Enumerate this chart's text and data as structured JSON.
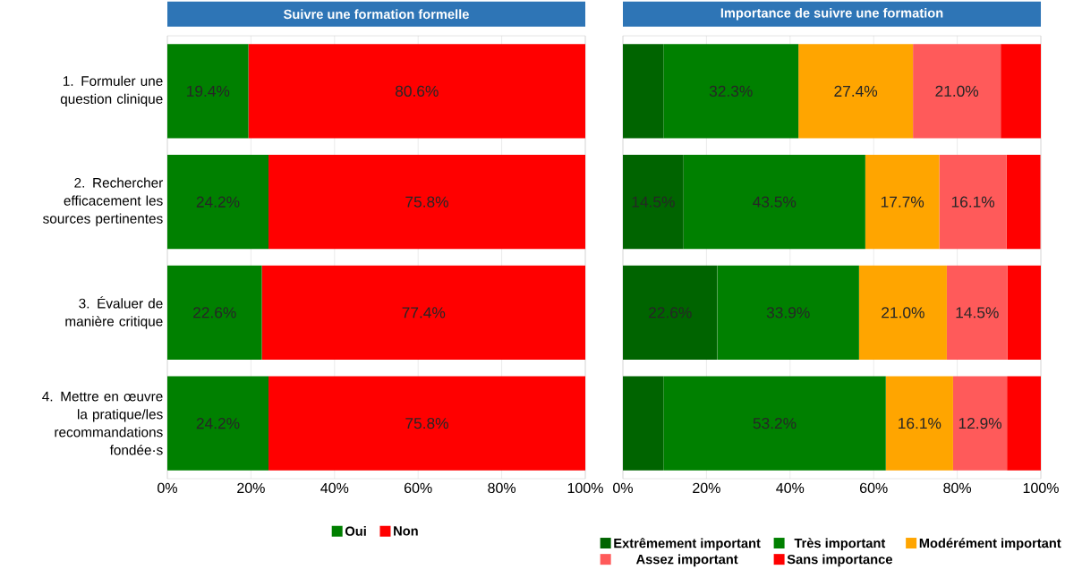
{
  "chart_data": [
    {
      "type": "bar",
      "orientation": "horizontal",
      "stacked": true,
      "title": "Suivre une formation formelle",
      "categories": [
        "1. Formuler une question clinique",
        "2. Rechercher efficacement les sources pertinentes",
        "3. Évaluer de manière critique",
        "4. Mettre en œuvre la pratique/les recommandations fondée·s"
      ],
      "series": [
        {
          "name": "Oui",
          "color": "#008000",
          "values": [
            19.4,
            24.2,
            22.6,
            24.2
          ],
          "value_labels": [
            "19.4%",
            "24.2%",
            "22.6%",
            "24.2%"
          ]
        },
        {
          "name": "Non",
          "color": "#ff0000",
          "values": [
            80.6,
            75.8,
            77.4,
            75.8
          ],
          "value_labels": [
            "80.6%",
            "75.8%",
            "77.4%",
            "75.8%"
          ]
        }
      ],
      "xlim": [
        0,
        100
      ],
      "xticks": [
        {
          "value": 0,
          "label": "0%"
        },
        {
          "value": 20,
          "label": "20%"
        },
        {
          "value": 40,
          "label": "40%"
        },
        {
          "value": 60,
          "label": "60%"
        },
        {
          "value": 80,
          "label": "80%"
        },
        {
          "value": 100,
          "label": "100%"
        }
      ],
      "grid": "x",
      "legend": "bottom"
    },
    {
      "type": "bar",
      "orientation": "horizontal",
      "stacked": true,
      "title": "Importance de suivre une formation",
      "categories": [
        null,
        null,
        null,
        null
      ],
      "series": [
        {
          "name": "Extrêmement important",
          "color": "#006400",
          "values": [
            9.7,
            14.5,
            22.6,
            9.7
          ],
          "value_labels": [
            null,
            "14.5%",
            "22.6%",
            null
          ]
        },
        {
          "name": "Très important",
          "color": "#008000",
          "values": [
            32.3,
            43.5,
            33.9,
            53.2
          ],
          "value_labels": [
            "32.3%",
            "43.5%",
            "33.9%",
            "53.2%"
          ]
        },
        {
          "name": "Modérément important",
          "color": "#ffa500",
          "values": [
            27.4,
            17.7,
            21.0,
            16.1
          ],
          "value_labels": [
            "27.4%",
            "17.7%",
            "21.0%",
            "16.1%"
          ]
        },
        {
          "name": "Assez important",
          "color": "#ff5a5a",
          "values": [
            21.0,
            16.1,
            14.5,
            12.9
          ],
          "value_labels": [
            "21.0%",
            "16.1%",
            "14.5%",
            "12.9%"
          ]
        },
        {
          "name": "Sans importance",
          "color": "#ff0000",
          "values": [
            9.7,
            8.1,
            8.1,
            8.1
          ],
          "value_labels": [
            null,
            null,
            null,
            null
          ]
        }
      ],
      "xlim": [
        0,
        100
      ],
      "xticks": [
        {
          "value": 0,
          "label": "0%"
        },
        {
          "value": 20,
          "label": "20%"
        },
        {
          "value": 40,
          "label": "40%"
        },
        {
          "value": 60,
          "label": "60%"
        },
        {
          "value": 80,
          "label": "80%"
        },
        {
          "value": 100,
          "label": "100%"
        }
      ],
      "grid": "x",
      "legend": "bottom",
      "tick_labels": "x"
    }
  ]
}
